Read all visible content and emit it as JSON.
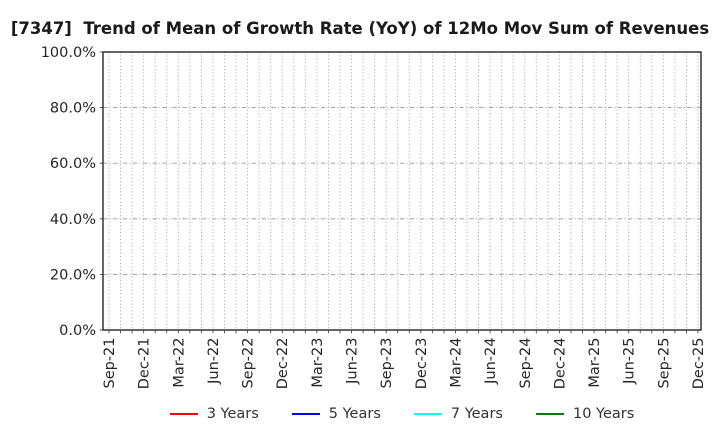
{
  "chart_data": {
    "type": "line",
    "title": "[7347]  Trend of Mean of Growth Rate (YoY) of 12Mo Mov Sum of Revenues",
    "xlabel": "",
    "ylabel": "",
    "ylim": [
      0,
      100
    ],
    "y_tick_labels": [
      "0.0%",
      "20.0%",
      "40.0%",
      "60.0%",
      "80.0%",
      "100.0%"
    ],
    "x_tick_labels": [
      "Sep-21",
      "Dec-21",
      "Mar-22",
      "Jun-22",
      "Sep-22",
      "Dec-22",
      "Mar-23",
      "Jun-23",
      "Sep-23",
      "Dec-23",
      "Mar-24",
      "Jun-24",
      "Sep-24",
      "Dec-24",
      "Mar-25",
      "Jun-25",
      "Sep-25",
      "Dec-25"
    ],
    "minor_x_gridlines_per_quarter": 3,
    "grid": "on",
    "legend_position": "bottom",
    "plot_is_empty": true,
    "series": [
      {
        "name": "3 Years",
        "color": "#ff0000",
        "x": [],
        "values": []
      },
      {
        "name": "5 Years",
        "color": "#0000ff",
        "x": [],
        "values": []
      },
      {
        "name": "7 Years",
        "color": "#00ffff",
        "x": [],
        "values": []
      },
      {
        "name": "10 Years",
        "color": "#008000",
        "x": [],
        "values": []
      }
    ],
    "colors": {
      "frame": "#000000",
      "grid": "#999999",
      "tick_text": "#262626",
      "title_text": "#1a1a1a"
    }
  }
}
